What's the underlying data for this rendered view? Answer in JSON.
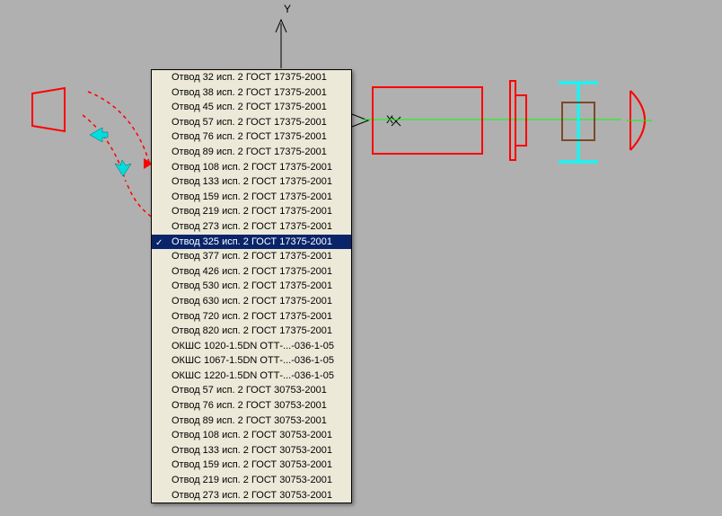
{
  "axes": {
    "y_label": "Y",
    "x_label": "X"
  },
  "colors": {
    "red": "#ff0000",
    "green": "#00ff00",
    "cyan": "#00ffff",
    "brown": "#7a4a2a",
    "menu_bg": "#ece9d8",
    "highlight_bg": "#0a246a",
    "highlight_fg": "#ffffff",
    "canvas_bg": "#b0b0b0"
  },
  "dropdown": {
    "selected_index": 11,
    "items": [
      "Отвод 32   исп. 2 ГОСТ 17375-2001",
      "Отвод 38   исп. 2 ГОСТ 17375-2001",
      "Отвод 45   исп. 2 ГОСТ 17375-2001",
      "Отвод 57   исп. 2 ГОСТ 17375-2001",
      "Отвод 76   исп. 2 ГОСТ 17375-2001",
      "Отвод 89   исп. 2 ГОСТ 17375-2001",
      "Отвод 108 исп. 2 ГОСТ 17375-2001",
      "Отвод 133 исп. 2 ГОСТ 17375-2001",
      "Отвод 159 исп. 2 ГОСТ 17375-2001",
      "Отвод 219 исп. 2 ГОСТ 17375-2001",
      "Отвод 273 исп. 2 ГОСТ 17375-2001",
      "Отвод 325 исп. 2 ГОСТ 17375-2001",
      "Отвод 377 исп. 2 ГОСТ 17375-2001",
      "Отвод 426 исп. 2 ГОСТ 17375-2001",
      "Отвод 530 исп. 2 ГОСТ 17375-2001",
      "Отвод 630 исп. 2 ГОСТ 17375-2001",
      "Отвод 720 исп. 2 ГОСТ 17375-2001",
      "Отвод 820 исп. 2 ГОСТ 17375-2001",
      "ОКШС 1020-1.5DN ОТТ-...-036-1-05",
      "ОКШС 1067-1.5DN ОТТ-...-036-1-05",
      "ОКШС 1220-1.5DN ОТТ-...-036-1-05",
      "Отвод 57   исп. 2 ГОСТ 30753-2001",
      "Отвод 76   исп. 2 ГОСТ 30753-2001",
      "Отвод 89   исп. 2 ГОСТ 30753-2001",
      "Отвод 108 исп. 2 ГОСТ 30753-2001",
      "Отвод 133 исп. 2 ГОСТ 30753-2001",
      "Отвод 159 исп. 2 ГОСТ 30753-2001",
      "Отвод 219 исп. 2 ГОСТ 30753-2001",
      "Отвод 273 исп. 2 ГОСТ 30753-2001"
    ]
  }
}
